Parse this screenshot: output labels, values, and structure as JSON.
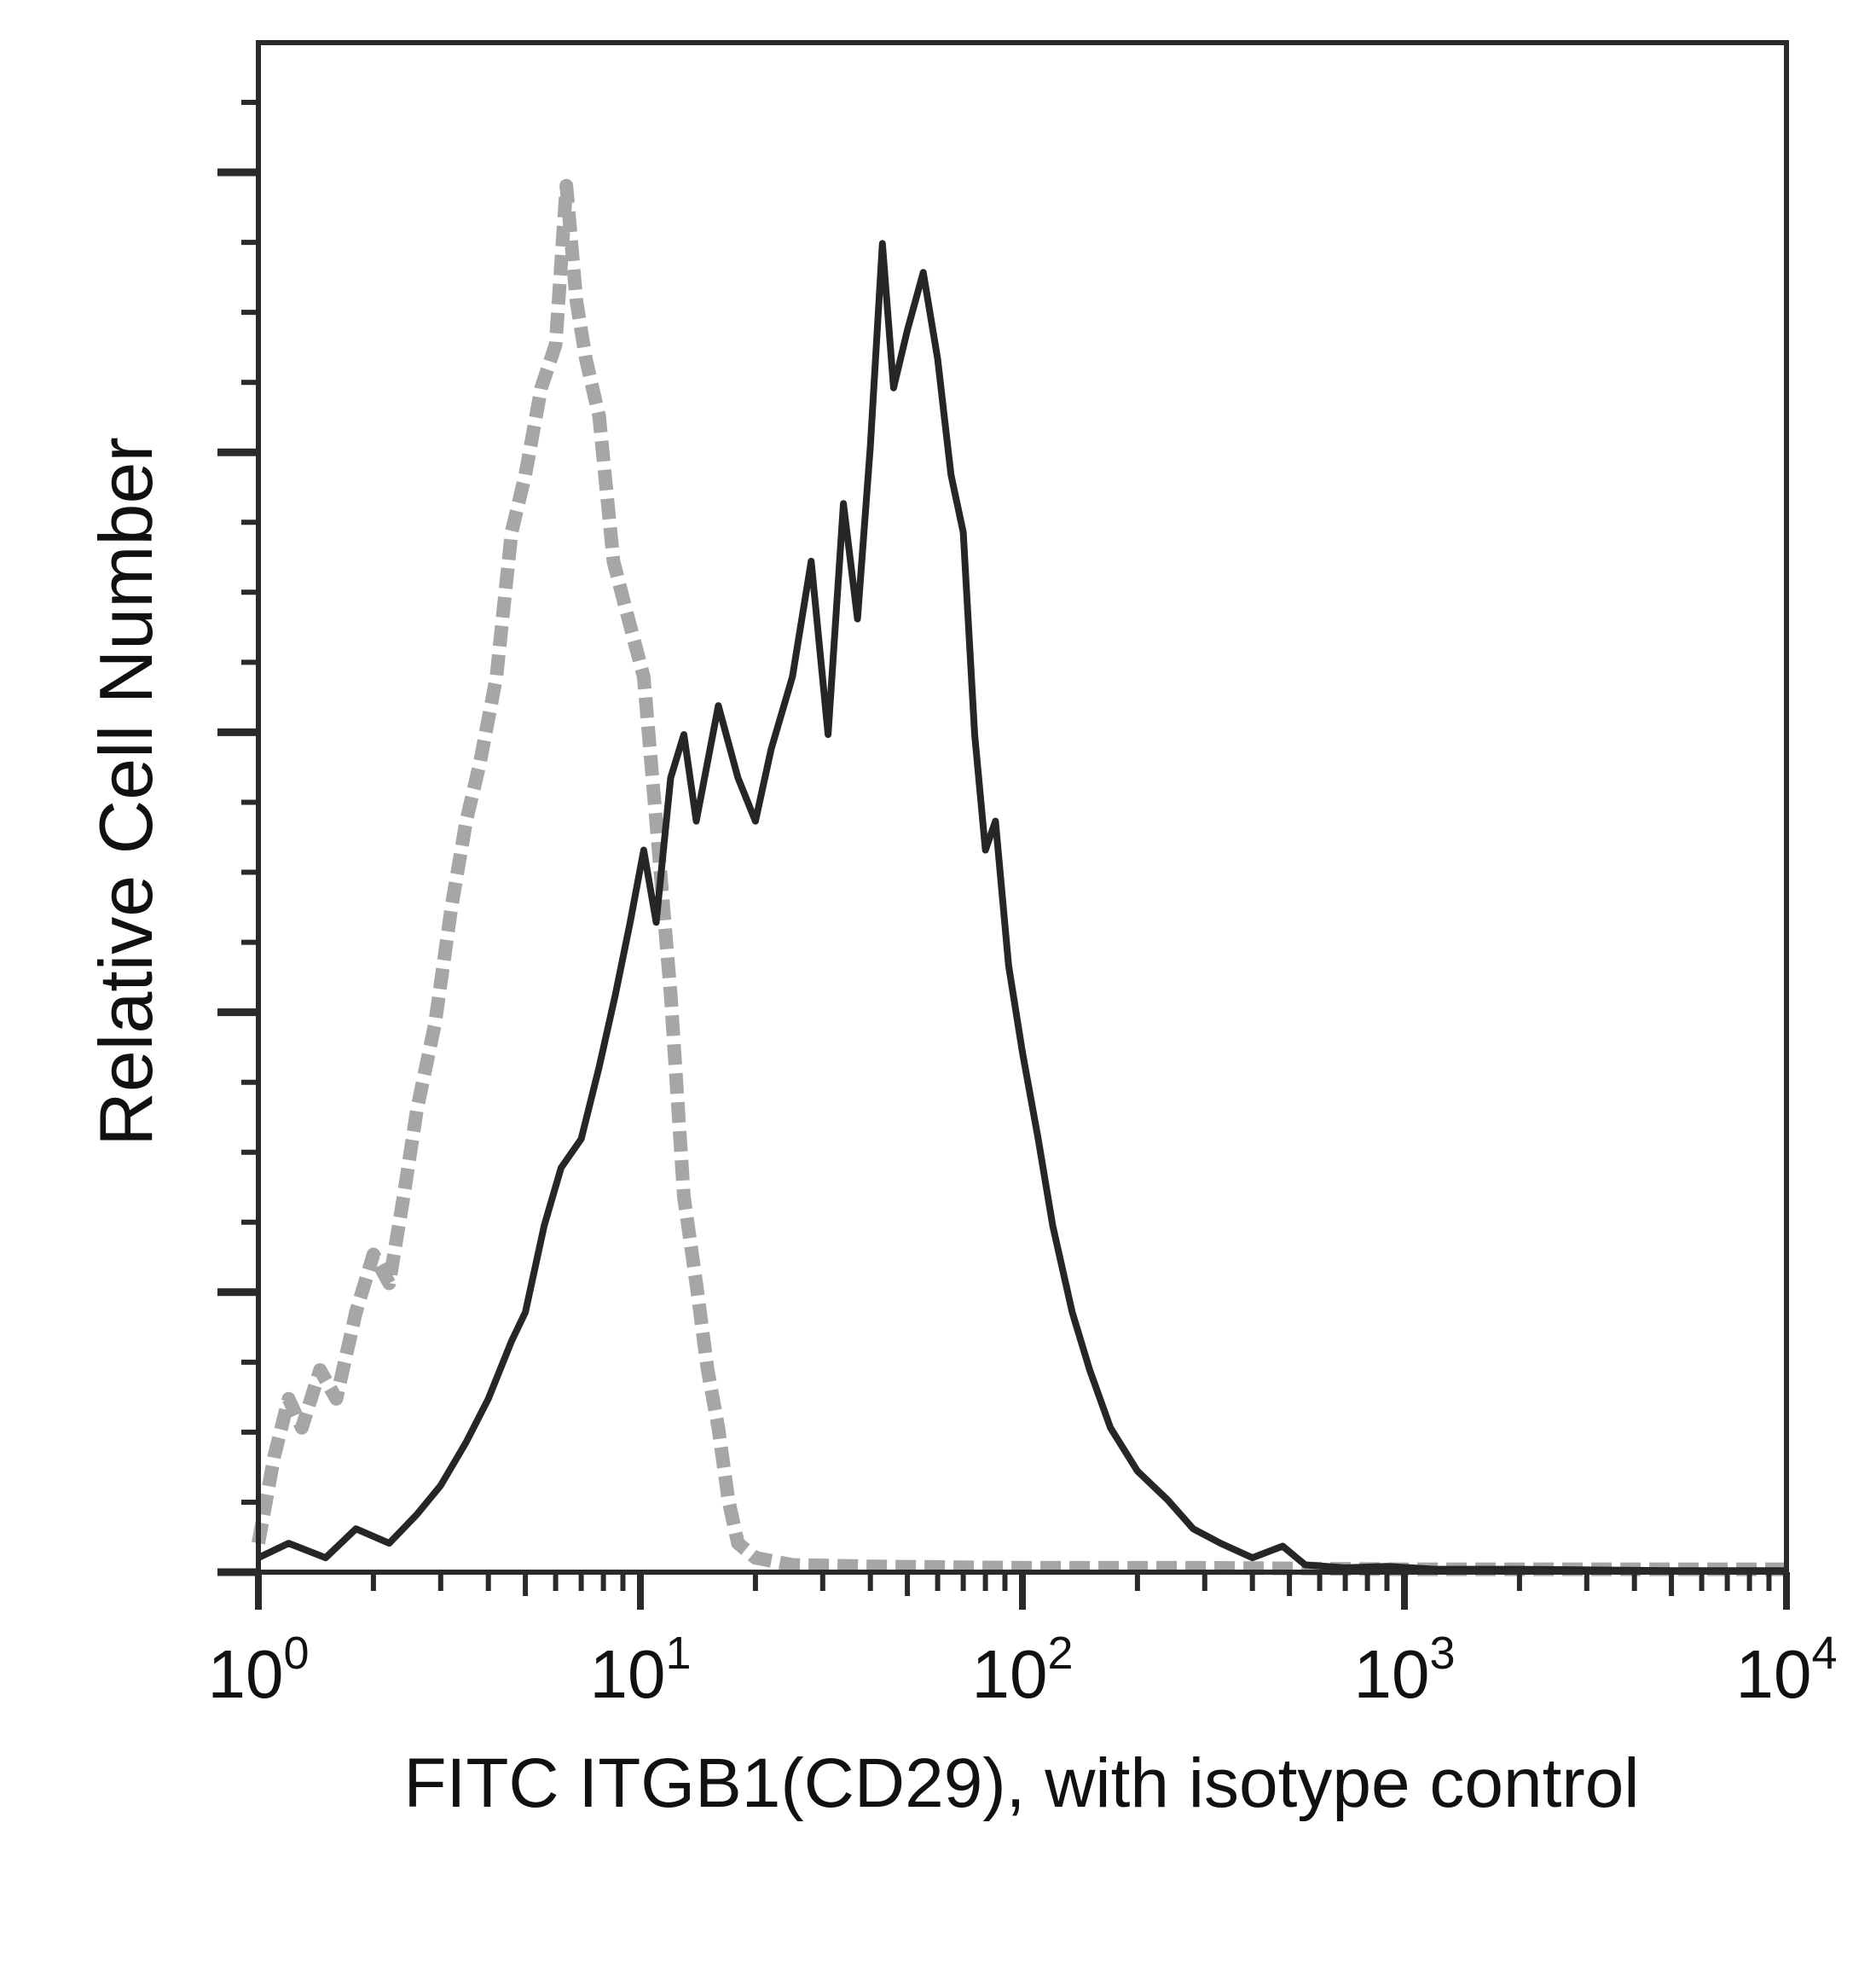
{
  "chart_data": {
    "type": "line",
    "title": "",
    "xlabel": "FITC ITGB1(CD29), with isotype control",
    "ylabel": "Relative Cell Number",
    "xscale": "log",
    "xlim": [
      1,
      10000
    ],
    "ylim": [
      0,
      100
    ],
    "x_ticks": [
      {
        "base": "10",
        "exp": "0"
      },
      {
        "base": "10",
        "exp": "1"
      },
      {
        "base": "10",
        "exp": "2"
      },
      {
        "base": "10",
        "exp": "3"
      },
      {
        "base": "10",
        "exp": "4"
      }
    ],
    "grid": false,
    "legend": "none",
    "series": [
      {
        "color": "#a6a6a6",
        "style": "dashed",
        "points": [
          [
            1.0,
            2
          ],
          [
            1.1,
            8
          ],
          [
            1.2,
            12
          ],
          [
            1.3,
            10
          ],
          [
            1.45,
            14
          ],
          [
            1.6,
            12
          ],
          [
            1.8,
            18
          ],
          [
            2.0,
            22
          ],
          [
            2.2,
            20
          ],
          [
            2.4,
            26
          ],
          [
            2.6,
            32
          ],
          [
            2.9,
            38
          ],
          [
            3.2,
            46
          ],
          [
            3.5,
            52
          ],
          [
            3.8,
            56
          ],
          [
            4.2,
            62
          ],
          [
            4.6,
            72
          ],
          [
            5.0,
            76
          ],
          [
            5.5,
            82
          ],
          [
            6.0,
            85
          ],
          [
            6.4,
            96
          ],
          [
            6.8,
            88
          ],
          [
            7.2,
            84
          ],
          [
            7.8,
            80
          ],
          [
            8.5,
            70
          ],
          [
            9.3,
            66
          ],
          [
            10.2,
            62
          ],
          [
            11,
            52
          ],
          [
            12,
            40
          ],
          [
            13,
            26
          ],
          [
            14,
            20
          ],
          [
            15,
            14
          ],
          [
            16,
            10
          ],
          [
            17,
            5
          ],
          [
            18,
            2
          ],
          [
            20,
            1
          ],
          [
            25,
            0.5
          ],
          [
            40,
            0.4
          ],
          [
            100,
            0.3
          ],
          [
            300,
            0.3
          ],
          [
            1000,
            0.2
          ],
          [
            10000,
            0.2
          ]
        ]
      },
      {
        "color": "#262626",
        "style": "solid",
        "points": [
          [
            1.0,
            1
          ],
          [
            1.2,
            2
          ],
          [
            1.5,
            1
          ],
          [
            1.8,
            3
          ],
          [
            2.2,
            2
          ],
          [
            2.6,
            4
          ],
          [
            3.0,
            6
          ],
          [
            3.5,
            9
          ],
          [
            4.0,
            12
          ],
          [
            4.6,
            16
          ],
          [
            5.0,
            18
          ],
          [
            5.6,
            24
          ],
          [
            6.2,
            28
          ],
          [
            7.0,
            30
          ],
          [
            7.8,
            35
          ],
          [
            8.6,
            40
          ],
          [
            9.4,
            45
          ],
          [
            10.2,
            50
          ],
          [
            11,
            45
          ],
          [
            12,
            55
          ],
          [
            13,
            58
          ],
          [
            14,
            52
          ],
          [
            16,
            60
          ],
          [
            18,
            55
          ],
          [
            20,
            52
          ],
          [
            22,
            57
          ],
          [
            25,
            62
          ],
          [
            28,
            70
          ],
          [
            31,
            58
          ],
          [
            34,
            74
          ],
          [
            37,
            66
          ],
          [
            40,
            78
          ],
          [
            43,
            92
          ],
          [
            46,
            82
          ],
          [
            50,
            86
          ],
          [
            55,
            90
          ],
          [
            60,
            84
          ],
          [
            65,
            76
          ],
          [
            70,
            72
          ],
          [
            75,
            58
          ],
          [
            80,
            50
          ],
          [
            85,
            52
          ],
          [
            92,
            42
          ],
          [
            100,
            36
          ],
          [
            110,
            30
          ],
          [
            120,
            24
          ],
          [
            135,
            18
          ],
          [
            150,
            14
          ],
          [
            170,
            10
          ],
          [
            200,
            7
          ],
          [
            240,
            5
          ],
          [
            280,
            3
          ],
          [
            330,
            2
          ],
          [
            400,
            1
          ],
          [
            480,
            1.8
          ],
          [
            550,
            0.5
          ],
          [
            700,
            0.3
          ],
          [
            900,
            0.4
          ],
          [
            1200,
            0.2
          ],
          [
            2000,
            0.2
          ],
          [
            5000,
            0.1
          ],
          [
            10000,
            0.1
          ]
        ]
      }
    ]
  }
}
